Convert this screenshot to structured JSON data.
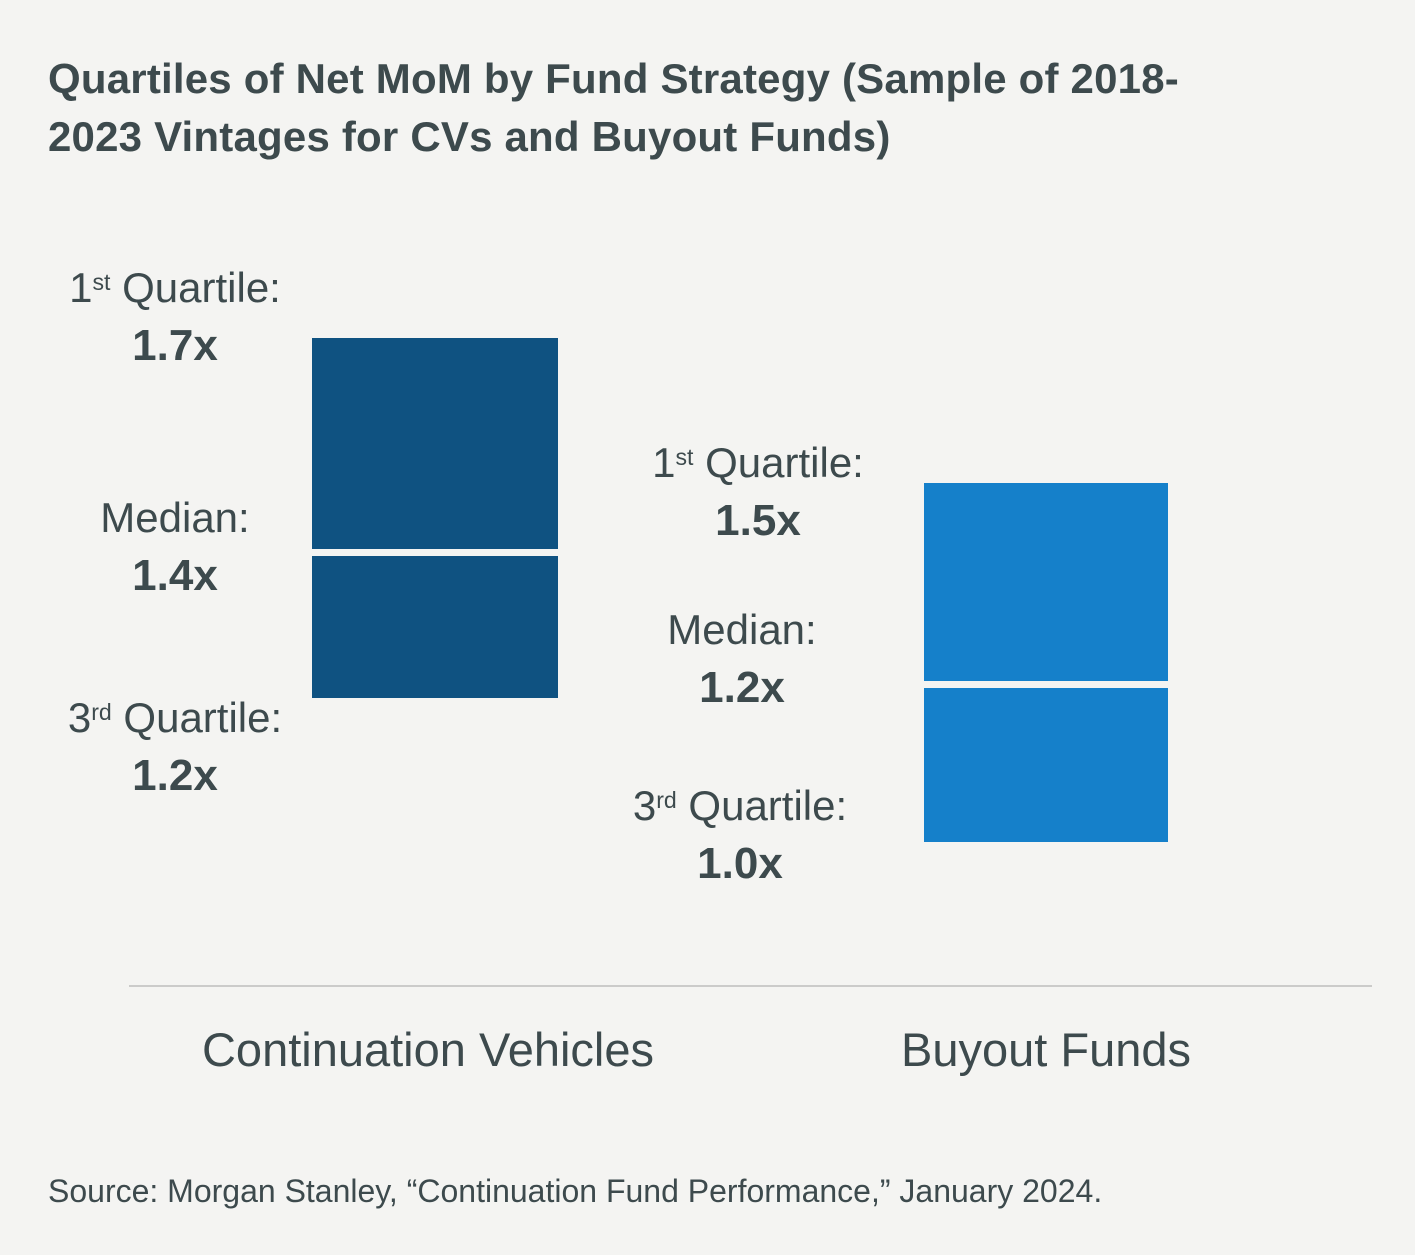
{
  "title": "Quartiles of Net MoM by Fund Strategy (Sample of 2018-2023 Vintages for CVs and Buyout Funds)",
  "source": "Source: Morgan Stanley, “Continuation Fund Performance,” January 2024.",
  "colors": {
    "background": "#f4f4f2",
    "text": "#3d4a4d",
    "cv_bar": "#0f5281",
    "buyout_bar": "#1580ca",
    "divider": "#cbcbca",
    "median_gap": "#f4f4f2"
  },
  "chart_data": {
    "type": "bar",
    "title": "Quartiles of Net MoM by Fund Strategy (Sample of 2018-2023 Vintages for CVs and Buyout Funds)",
    "categories": [
      "Continuation Vehicles",
      "Buyout Funds"
    ],
    "series": [
      {
        "name": "Continuation Vehicles",
        "first_quartile": 1.7,
        "median": 1.4,
        "third_quartile": 1.2
      },
      {
        "name": "Buyout Funds",
        "first_quartile": 1.5,
        "median": 1.2,
        "third_quartile": 1.0
      }
    ],
    "value_unit": "x (net MoM multiple)",
    "value_format": "1.7x / 1.4x / 1.2x and 1.5x / 1.2x / 1.0x shown as side annotations",
    "axes": "none",
    "grid": false,
    "legend": "none",
    "source": "Source: Morgan Stanley, “Continuation Fund Performance,” January 2024."
  },
  "labels": {
    "cv": [
      {
        "prefix": "1",
        "sup": "st",
        "rest": " Quartile:",
        "value": "1.7x"
      },
      {
        "prefix": "Median:",
        "sup": "",
        "rest": "",
        "value": "1.4x"
      },
      {
        "prefix": "3",
        "sup": "rd",
        "rest": " Quartile:",
        "value": "1.2x"
      }
    ],
    "buyout": [
      {
        "prefix": "1",
        "sup": "st",
        "rest": " Quartile:",
        "value": "1.5x"
      },
      {
        "prefix": "Median:",
        "sup": "",
        "rest": "",
        "value": "1.2x"
      },
      {
        "prefix": "3",
        "sup": "rd",
        "rest": " Quartile:",
        "value": "1.0x"
      }
    ]
  },
  "categories": [
    "Continuation Vehicles",
    "Buyout Funds"
  ]
}
